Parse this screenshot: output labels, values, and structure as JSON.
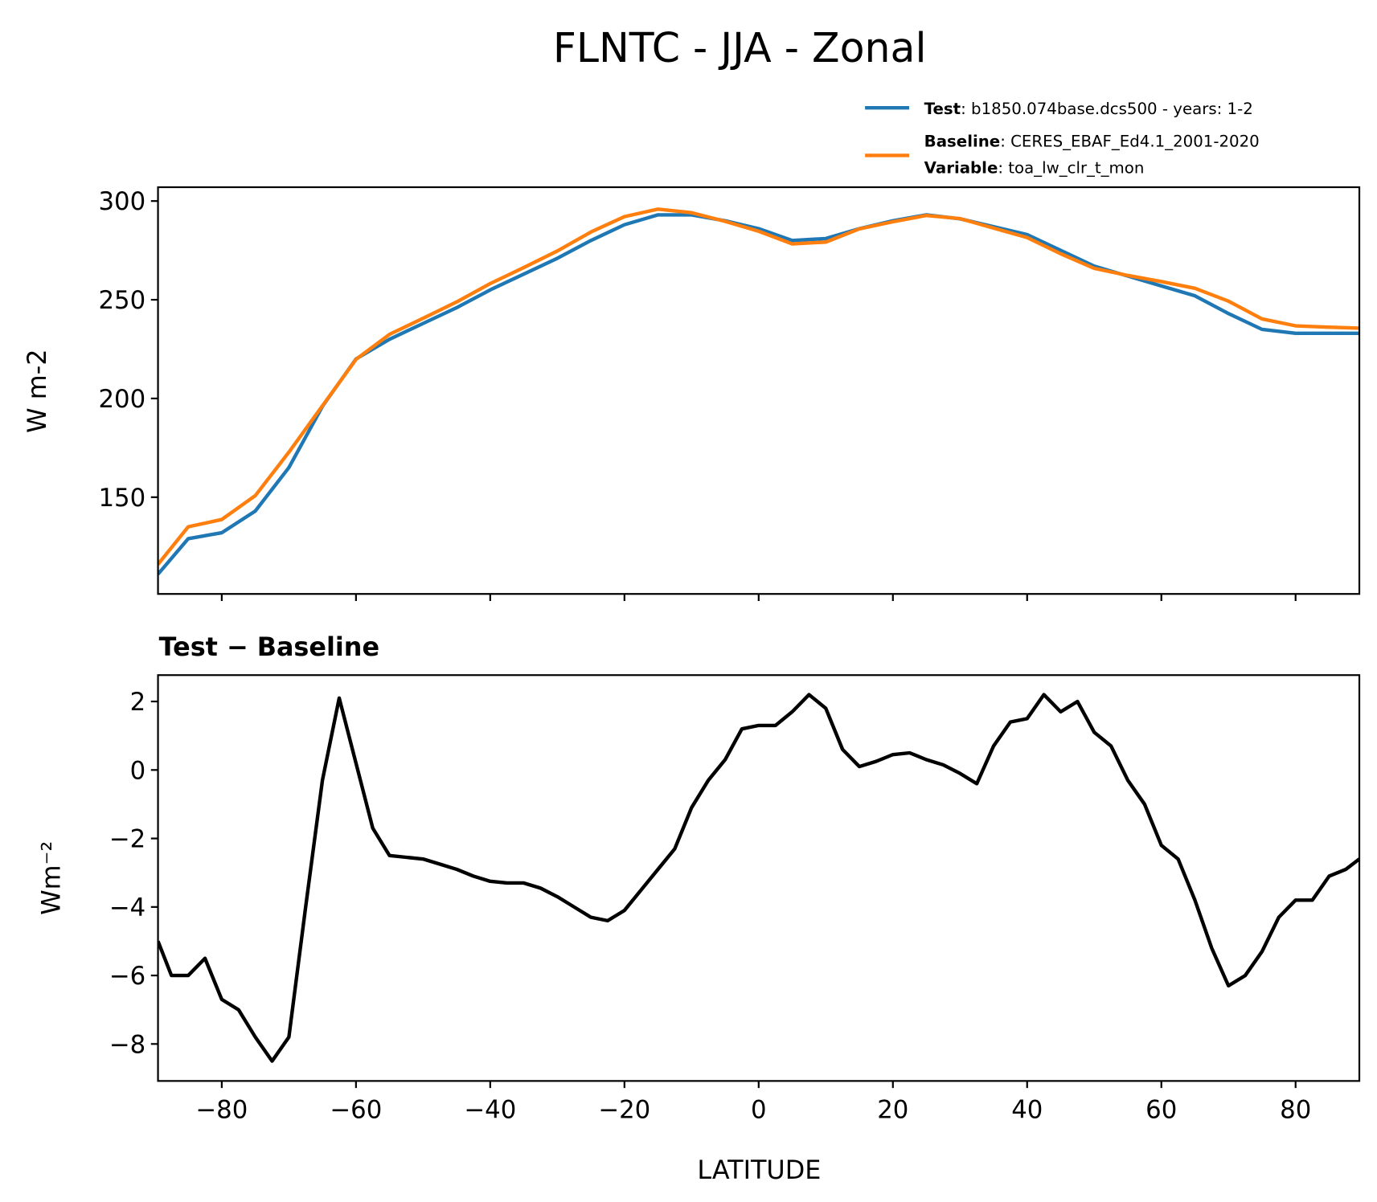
{
  "chart_data": [
    {
      "type": "line",
      "title": "FLNTC - JJA - Zonal",
      "ylabel": "W m-2",
      "xlim": [
        -89.5,
        89.5
      ],
      "xticks": [
        -80,
        -60,
        -40,
        -20,
        0,
        20,
        40,
        60,
        80
      ],
      "ylim": [
        101,
        307
      ],
      "yticks": [
        150,
        200,
        250,
        300
      ],
      "x": [
        -89.5,
        -85,
        -80,
        -75,
        -70,
        -65,
        -60,
        -55,
        -50,
        -45,
        -40,
        -35,
        -30,
        -25,
        -20,
        -15,
        -10,
        -5,
        0,
        5,
        10,
        15,
        20,
        25,
        30,
        35,
        40,
        45,
        50,
        55,
        60,
        65,
        70,
        75,
        80,
        85,
        89.5
      ],
      "series": [
        {
          "name": "Test",
          "description": ": b1850.074base.dcs500 - years: 1-2",
          "color": "#1f77b4",
          "values": [
            111,
            129,
            132,
            143,
            165,
            196,
            220,
            230,
            238,
            246,
            255,
            263,
            271,
            280,
            288,
            293,
            293,
            290,
            286,
            280,
            281,
            286,
            290,
            293,
            291,
            287,
            283,
            275,
            267,
            262,
            257,
            252,
            243,
            235,
            233,
            233,
            233
          ]
        },
        {
          "name": "Baseline",
          "description": ": CERES_EBAF_Ed4.1_2001-2020",
          "color": "#ff7f0e",
          "values": [
            116,
            135,
            138.7,
            150.8,
            172.8,
            196.3,
            219.8,
            232.5,
            240.6,
            248.9,
            258.2,
            266.3,
            274.7,
            284.3,
            292.1,
            295.9,
            294.1,
            289.7,
            284.7,
            278.3,
            279.2,
            285.9,
            289.5,
            292.7,
            291.1,
            286.3,
            281.5,
            273.3,
            265.9,
            262.3,
            259.2,
            255.8,
            249.3,
            240.3,
            236.8,
            236.1,
            235.6
          ]
        }
      ],
      "variable_label": "Variable",
      "variable": ": toa_lw_clr_t_mon"
    },
    {
      "type": "line",
      "title": "Test − Baseline",
      "ylabel": "Wm⁻²",
      "xlabel": "LATITUDE",
      "xlim": [
        -89.5,
        89.5
      ],
      "xticks": [
        {
          "value": -80,
          "label": "−80"
        },
        {
          "value": -60,
          "label": "−60"
        },
        {
          "value": -40,
          "label": "−40"
        },
        {
          "value": -20,
          "label": "−20"
        },
        0,
        20,
        40,
        60,
        80
      ],
      "ylim": [
        -9.08,
        2.77
      ],
      "yticks": [
        {
          "value": -8,
          "label": "−8"
        },
        {
          "value": -6,
          "label": "−6"
        },
        {
          "value": -4,
          "label": "−4"
        },
        {
          "value": -2,
          "label": "−2"
        },
        0,
        2
      ],
      "x": [
        -89.5,
        -87.5,
        -85,
        -82.5,
        -80,
        -77.5,
        -75,
        -72.5,
        -70,
        -67.5,
        -65,
        -62.5,
        -60,
        -57.5,
        -55,
        -52.5,
        -50,
        -47.5,
        -45,
        -42.5,
        -40,
        -37.5,
        -35,
        -32.5,
        -30,
        -27.5,
        -25,
        -22.5,
        -20,
        -17.5,
        -15,
        -12.5,
        -10,
        -7.5,
        -5,
        -2.5,
        0,
        2.5,
        5,
        7.5,
        10,
        12.5,
        15,
        17.5,
        20,
        22.5,
        25,
        27.5,
        30,
        32.5,
        35,
        37.5,
        40,
        42.5,
        45,
        47.5,
        50,
        52.5,
        55,
        57.5,
        60,
        62.5,
        65,
        67.5,
        70,
        72.5,
        75,
        77.5,
        80,
        82.5,
        85,
        87.5,
        89.5
      ],
      "series": [
        {
          "color": "#000000",
          "values": [
            -5.0,
            -6.0,
            -6.0,
            -5.5,
            -6.7,
            -7.0,
            -7.8,
            -8.5,
            -7.8,
            -4.0,
            -0.3,
            2.1,
            0.2,
            -1.7,
            -2.5,
            -2.55,
            -2.6,
            -2.75,
            -2.9,
            -3.1,
            -3.25,
            -3.3,
            -3.3,
            -3.45,
            -3.7,
            -4.0,
            -4.3,
            -4.4,
            -4.1,
            -3.5,
            -2.9,
            -2.3,
            -1.1,
            -0.3,
            0.3,
            1.2,
            1.3,
            1.3,
            1.7,
            2.2,
            1.8,
            0.6,
            0.1,
            0.25,
            0.45,
            0.5,
            0.3,
            0.15,
            -0.1,
            -0.4,
            0.7,
            1.4,
            1.5,
            2.2,
            1.7,
            2.0,
            1.1,
            0.7,
            -0.3,
            -1.0,
            -2.2,
            -2.6,
            -3.8,
            -5.2,
            -6.3,
            -6.0,
            -5.3,
            -4.3,
            -3.8,
            -3.8,
            -3.1,
            -2.9,
            -2.6
          ]
        }
      ]
    }
  ]
}
